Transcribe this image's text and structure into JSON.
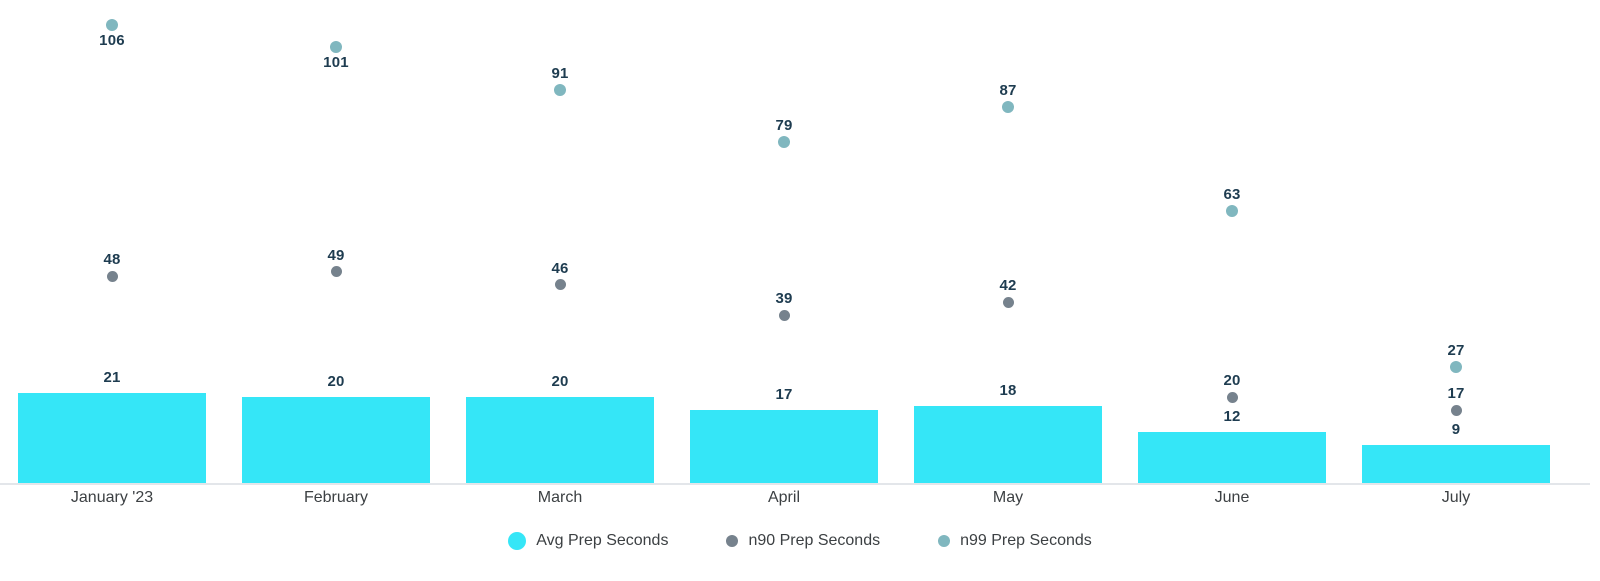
{
  "colors": {
    "bar": "#35e6f7",
    "n90_dot": "#76828d",
    "n99_dot": "#80b7bf",
    "value_label": "#1e3c50",
    "axis_text": "#3c4043",
    "axis_line": "#e3e6ea"
  },
  "chart_data": {
    "type": "bar",
    "title": "",
    "xlabel": "",
    "ylabel": "",
    "categories": [
      "January '23",
      "February",
      "March",
      "April",
      "May",
      "June",
      "July"
    ],
    "series": [
      {
        "name": "Avg Prep Seconds",
        "type": "bar",
        "color": "#35e6f7",
        "values": [
          21,
          20,
          20,
          17,
          18,
          12,
          9
        ]
      },
      {
        "name": "n90 Prep Seconds",
        "type": "scatter",
        "color": "#76828d",
        "values": [
          48,
          49,
          46,
          39,
          42,
          20,
          17
        ]
      },
      {
        "name": "n99 Prep Seconds",
        "type": "scatter",
        "color": "#80b7bf",
        "values": [
          106,
          101,
          91,
          79,
          87,
          63,
          27
        ]
      }
    ],
    "data_labels": true,
    "ylim": [
      0,
      111.8
    ],
    "grid": false,
    "y_axis_visible": false,
    "legend_position": "bottom"
  },
  "legend": {
    "items": [
      {
        "label": "Avg Prep Seconds",
        "swatch_color": "#35e6f7",
        "swatch_size": 18
      },
      {
        "label": "n90 Prep Seconds",
        "swatch_color": "#76828d",
        "swatch_size": 12
      },
      {
        "label": "n99 Prep Seconds",
        "swatch_color": "#80b7bf",
        "swatch_size": 12
      }
    ]
  }
}
